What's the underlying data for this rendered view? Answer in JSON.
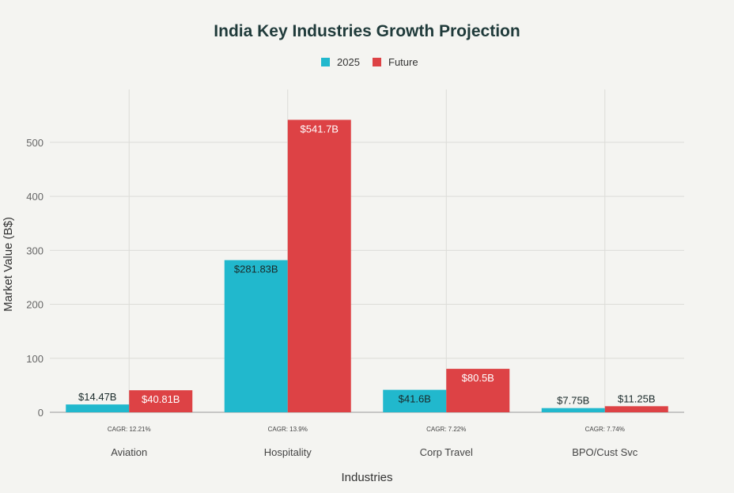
{
  "chart_data": {
    "type": "bar",
    "title": "India Key Industries Growth Projection",
    "xlabel": "Industries",
    "ylabel": "Market Value (B$)",
    "categories": [
      "Aviation",
      "Hospitality",
      "Corp Travel",
      "BPO/Cust Svc"
    ],
    "series": [
      {
        "name": "2025",
        "color": "#21b8cd",
        "values": [
          14.47,
          281.83,
          41.6,
          7.75
        ],
        "labels": [
          "$14.47B",
          "$281.83B",
          "$41.6B",
          "$7.75B"
        ]
      },
      {
        "name": "Future",
        "color": "#dd4245",
        "values": [
          40.81,
          541.7,
          80.5,
          11.25
        ],
        "labels": [
          "$40.81B",
          "$541.7B",
          "$80.5B",
          "$11.25B"
        ]
      }
    ],
    "annotations": [
      "CAGR: 12.21%",
      "CAGR: 13.9%",
      "CAGR: 7.22%",
      "CAGR: 7.74%"
    ],
    "yticks": [
      0,
      100,
      200,
      300,
      400,
      500
    ],
    "ylim": [
      0,
      598
    ],
    "grid": true,
    "legend": "top-center"
  }
}
